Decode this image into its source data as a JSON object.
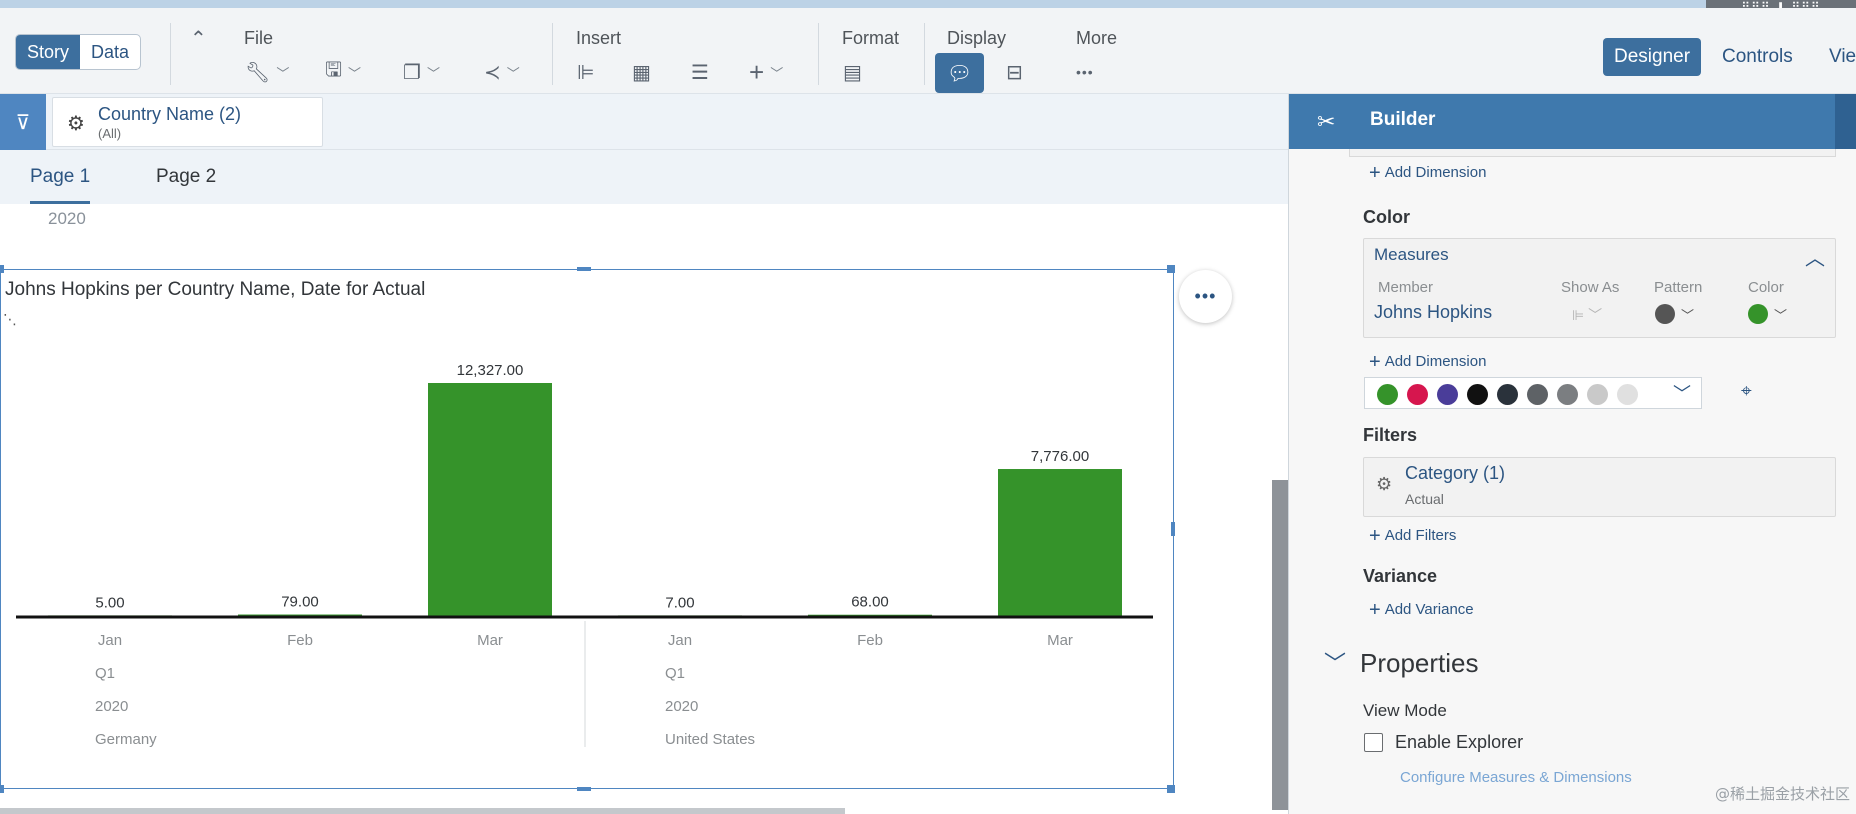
{
  "toolbar": {
    "story_label": "Story",
    "data_label": "Data",
    "groups": {
      "file": "File",
      "insert": "Insert",
      "format": "Format",
      "display": "Display",
      "more": "More"
    },
    "more_icon": "•••",
    "modes": {
      "designer": "Designer",
      "controls": "Controls",
      "view": "View"
    }
  },
  "corner_control": "⠿⠿⠿ ⬇ ⠿⠿⠿",
  "filter": {
    "title": "Country Name (2)",
    "subtitle": "(All)"
  },
  "pages": [
    "Page 1",
    "Page 2"
  ],
  "year_label": "2020",
  "chart": {
    "more_icon": "•••"
  },
  "chart_data": {
    "type": "bar",
    "title": "Johns Hopkins per Country Name, Date for Actual",
    "color": "#35932a",
    "categories": [
      "Jan",
      "Feb",
      "Mar",
      "Jan",
      "Feb",
      "Mar"
    ],
    "groups": [
      {
        "country": "Germany",
        "quarter": "Q1",
        "year": "2020"
      },
      {
        "country": "United States",
        "quarter": "Q1",
        "year": "2020"
      }
    ],
    "values": [
      5,
      79,
      12327,
      7,
      68,
      7776
    ],
    "value_labels": [
      "5.00",
      "79.00",
      "12,327.00",
      "7.00",
      "68.00",
      "7,776.00"
    ],
    "ylim": [
      0,
      12327
    ],
    "grid": false,
    "legend": "none"
  },
  "builder": {
    "title": "Builder",
    "add_dimension": "Add Dimension",
    "color_section": "Color",
    "measures_title": "Measures",
    "columns": {
      "member": "Member",
      "show_as": "Show As",
      "pattern": "Pattern",
      "color": "Color"
    },
    "member_value": "Johns Hopkins",
    "member_color": "#35932a",
    "pattern_color": "#555555",
    "palette": [
      "#35932a",
      "#d6164e",
      "#4a3d99",
      "#111111",
      "#2a323b",
      "#5e6266",
      "#7b7e81",
      "#c9c9c9",
      "#e0e0e0"
    ],
    "filters_section": "Filters",
    "filter_chip_title": "Category (1)",
    "filter_chip_value": "Actual",
    "add_filters": "Add Filters",
    "variance_section": "Variance",
    "add_variance": "Add Variance",
    "properties_title": "Properties",
    "view_mode": "View Mode",
    "enable_explorer": "Enable Explorer",
    "configure_link": "Configure Measures & Dimensions"
  },
  "watermark": "@稀土掘金技术社区"
}
